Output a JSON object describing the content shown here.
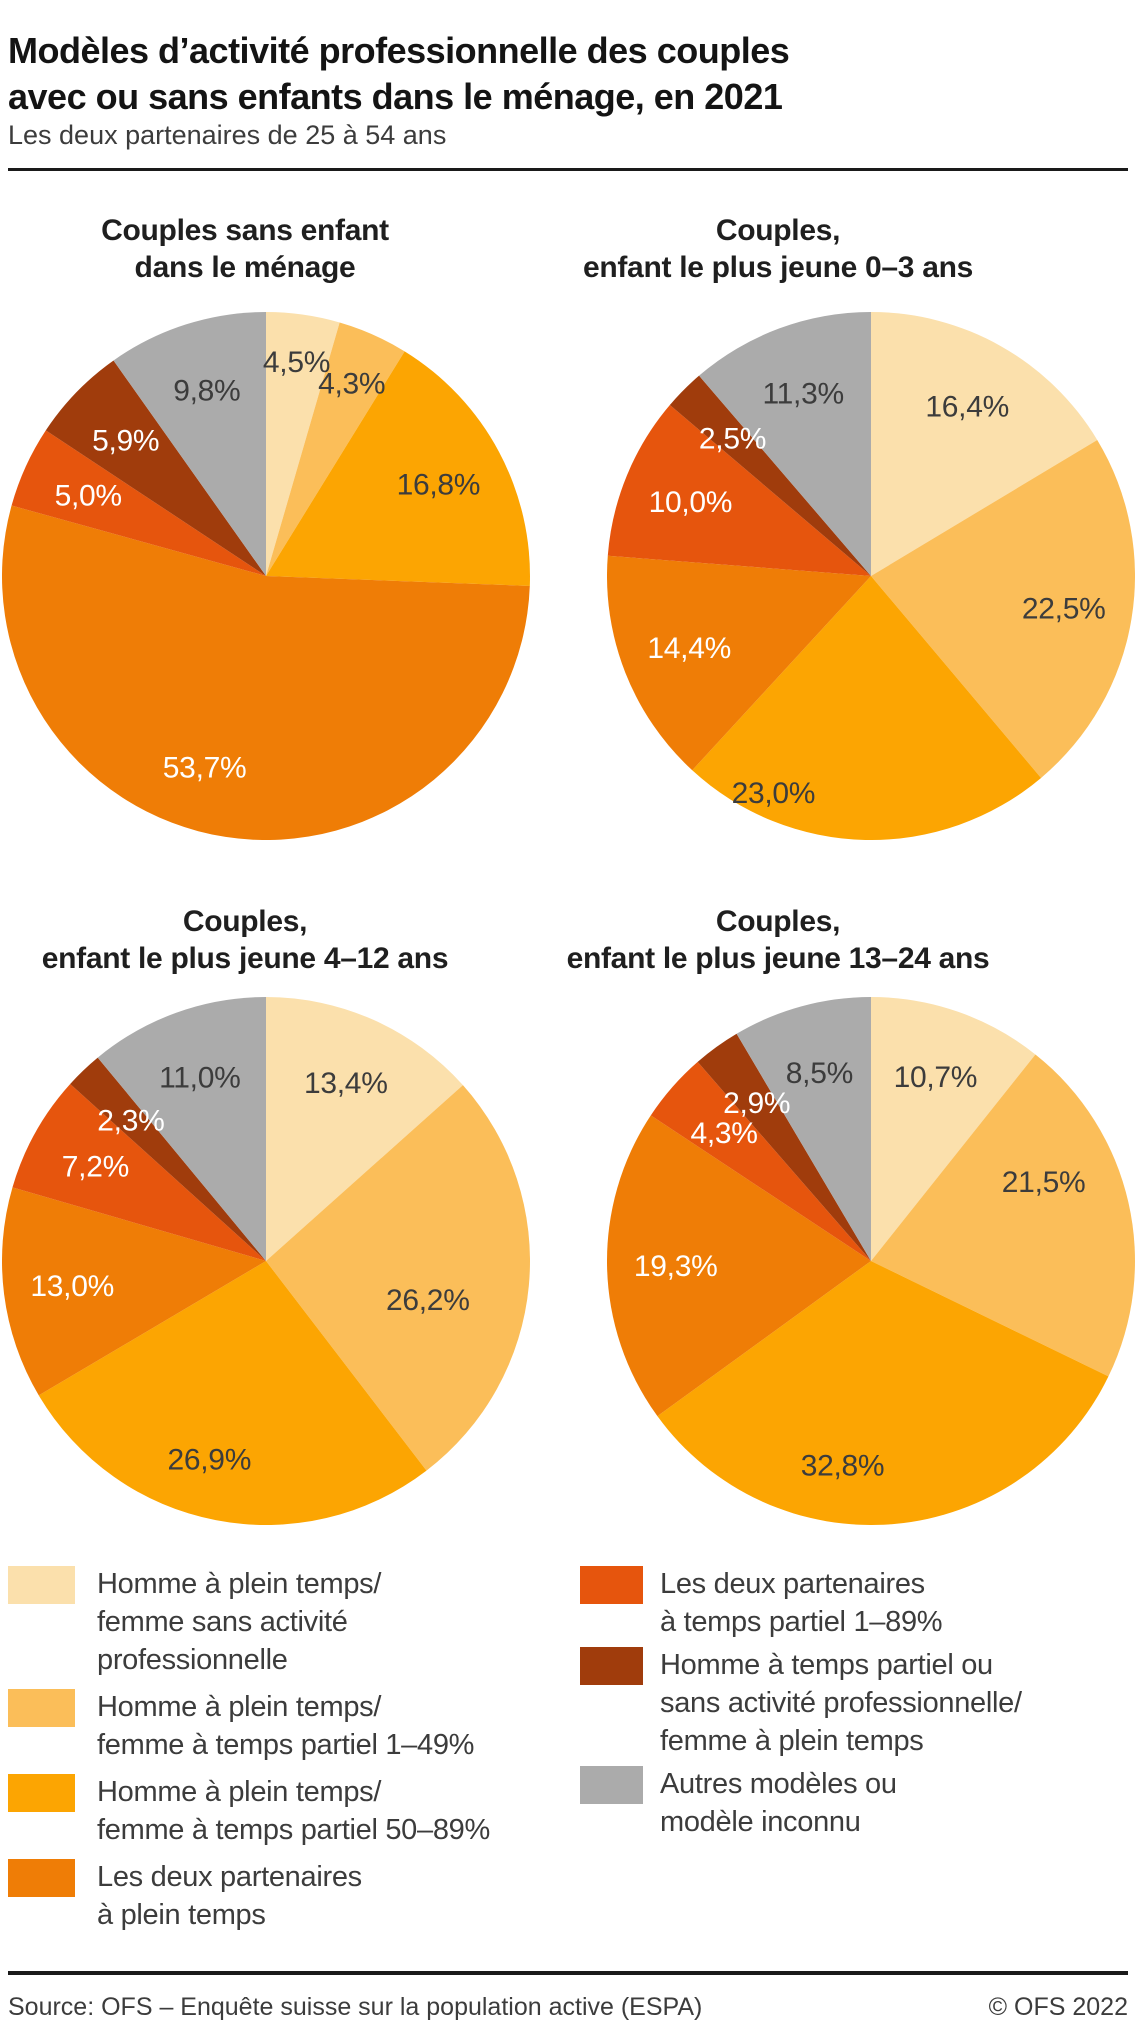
{
  "title": "Modèles d’activité professionnelle des couples\navec ou sans enfants dans le ménage, en 2021",
  "subtitle": "Les deux partenaires de 25 à 54 ans",
  "footer": {
    "source": "Source: OFS – Enquête suisse sur la population active (ESPA)",
    "copyright": "© OFS 2022"
  },
  "colors": {
    "background": "#FFFFFF",
    "rule": "#1A1A1A",
    "title_text": "#141414",
    "body_text": "#3C3C3C",
    "label_on_dark": "#FFFFFF"
  },
  "chart_data": {
    "type": "pie",
    "unit": "%",
    "direction": "clockwise",
    "start_angle_deg": 0,
    "category_ids": [
      "homme-ft-femme-sans",
      "homme-ft-femme-pt1-49",
      "homme-ft-femme-pt50-89",
      "deux-plein-temps",
      "deux-temps-partiel",
      "homme-pt-femme-ft",
      "autres-modeles"
    ],
    "categories": [
      "Homme à plein temps/femme sans activité professionnelle",
      "Homme à plein temps/femme à temps partiel 1–49%",
      "Homme à plein temps/femme à temps partiel 50–89%",
      "Les deux partenaires à plein temps",
      "Les deux partenaires à temps partiel 1–89%",
      "Homme à temps partiel ou sans activité professionnelle/femme à plein temps",
      "Autres modèles ou modèle inconnu"
    ],
    "palette": [
      "#FBE0AC",
      "#FBBE59",
      "#FCA502",
      "#EF7D06",
      "#E6550D",
      "#A03C0C",
      "#ABABAB"
    ],
    "label_text_colors": [
      "#3C3C3C",
      "#3C3C3C",
      "#3C3C3C",
      "#FFFFFF",
      "#FFFFFF",
      "#FFFFFF",
      "#3C3C3C"
    ],
    "layout": {
      "radius": 264,
      "default_label_rf": 0.74,
      "label_font_size": 30
    },
    "charts": [
      {
        "id": "sans-enfant",
        "title": "Couples sans enfant\ndans le ménage",
        "values": [
          4.5,
          4.3,
          16.8,
          53.7,
          5.0,
          5.9,
          9.8
        ],
        "labels": [
          "4,5%",
          "4,3%",
          "16,8%",
          "53,7%",
          "5,0%",
          "5,9%",
          "9,8%"
        ],
        "label_layout": {
          "0": {
            "rf": 0.82
          },
          "1": {
            "rf": 0.8
          },
          "3": {
            "da": 9,
            "rf": 0.76
          }
        }
      },
      {
        "id": "enfant-0-3",
        "title": "Couples,\nenfant le plus jeune 0–3 ans",
        "values": [
          16.4,
          22.5,
          23.0,
          14.4,
          10.0,
          2.5,
          11.3
        ],
        "labels": [
          "16,4%",
          "22,5%",
          "23,0%",
          "14,4%",
          "10,0%",
          "2,5%",
          "11,3%"
        ],
        "label_layout": {
          "2": {
            "da": 23,
            "rf": 0.9
          }
        }
      },
      {
        "id": "enfant-4-12",
        "title": "Couples,\nenfant le plus jeune 4–12 ans",
        "values": [
          13.4,
          26.2,
          26.9,
          13.0,
          7.2,
          2.3,
          11.0
        ],
        "labels": [
          "13,4%",
          "26,2%",
          "26,9%",
          "13,0%",
          "7,2%",
          "2,3%",
          "11,0%"
        ],
        "label_layout": {
          "1": {
            "da": 8,
            "rf": 0.63
          },
          "2": {
            "da": 5,
            "rf": 0.78
          }
        }
      },
      {
        "id": "enfant-13-24",
        "title": "Couples,\nenfant le plus jeune 13–24 ans",
        "values": [
          10.7,
          21.5,
          32.8,
          19.3,
          4.3,
          2.9,
          8.5
        ],
        "labels": [
          "10,7%",
          "21,5%",
          "32,8%",
          "19,3%",
          "4,3%",
          "2,9%",
          "8,5%"
        ],
        "label_layout": {
          "1": {
            "da": -12,
            "rf": 0.72
          },
          "2": {
            "da": 13,
            "rf": 0.78
          }
        }
      }
    ]
  },
  "legend": {
    "left": [
      {
        "category": 0,
        "lines": "Homme à plein temps/\nfemme sans activité\nprofessionnelle"
      },
      {
        "category": 1,
        "lines": "Homme à plein temps/\nfemme à temps partiel 1–49%"
      },
      {
        "category": 2,
        "lines": "Homme à plein temps/\nfemme à temps partiel 50–89%"
      },
      {
        "category": 3,
        "lines": "Les deux partenaires\nà plein temps"
      }
    ],
    "right": [
      {
        "category": 4,
        "lines": "Les deux partenaires\nà temps partiel 1–89%"
      },
      {
        "category": 5,
        "lines": "Homme à temps partiel ou\nsans activité professionnelle/\nfemme à plein temps"
      },
      {
        "category": 6,
        "lines": "Autres modèles ou\nmodèle inconnu"
      }
    ]
  }
}
